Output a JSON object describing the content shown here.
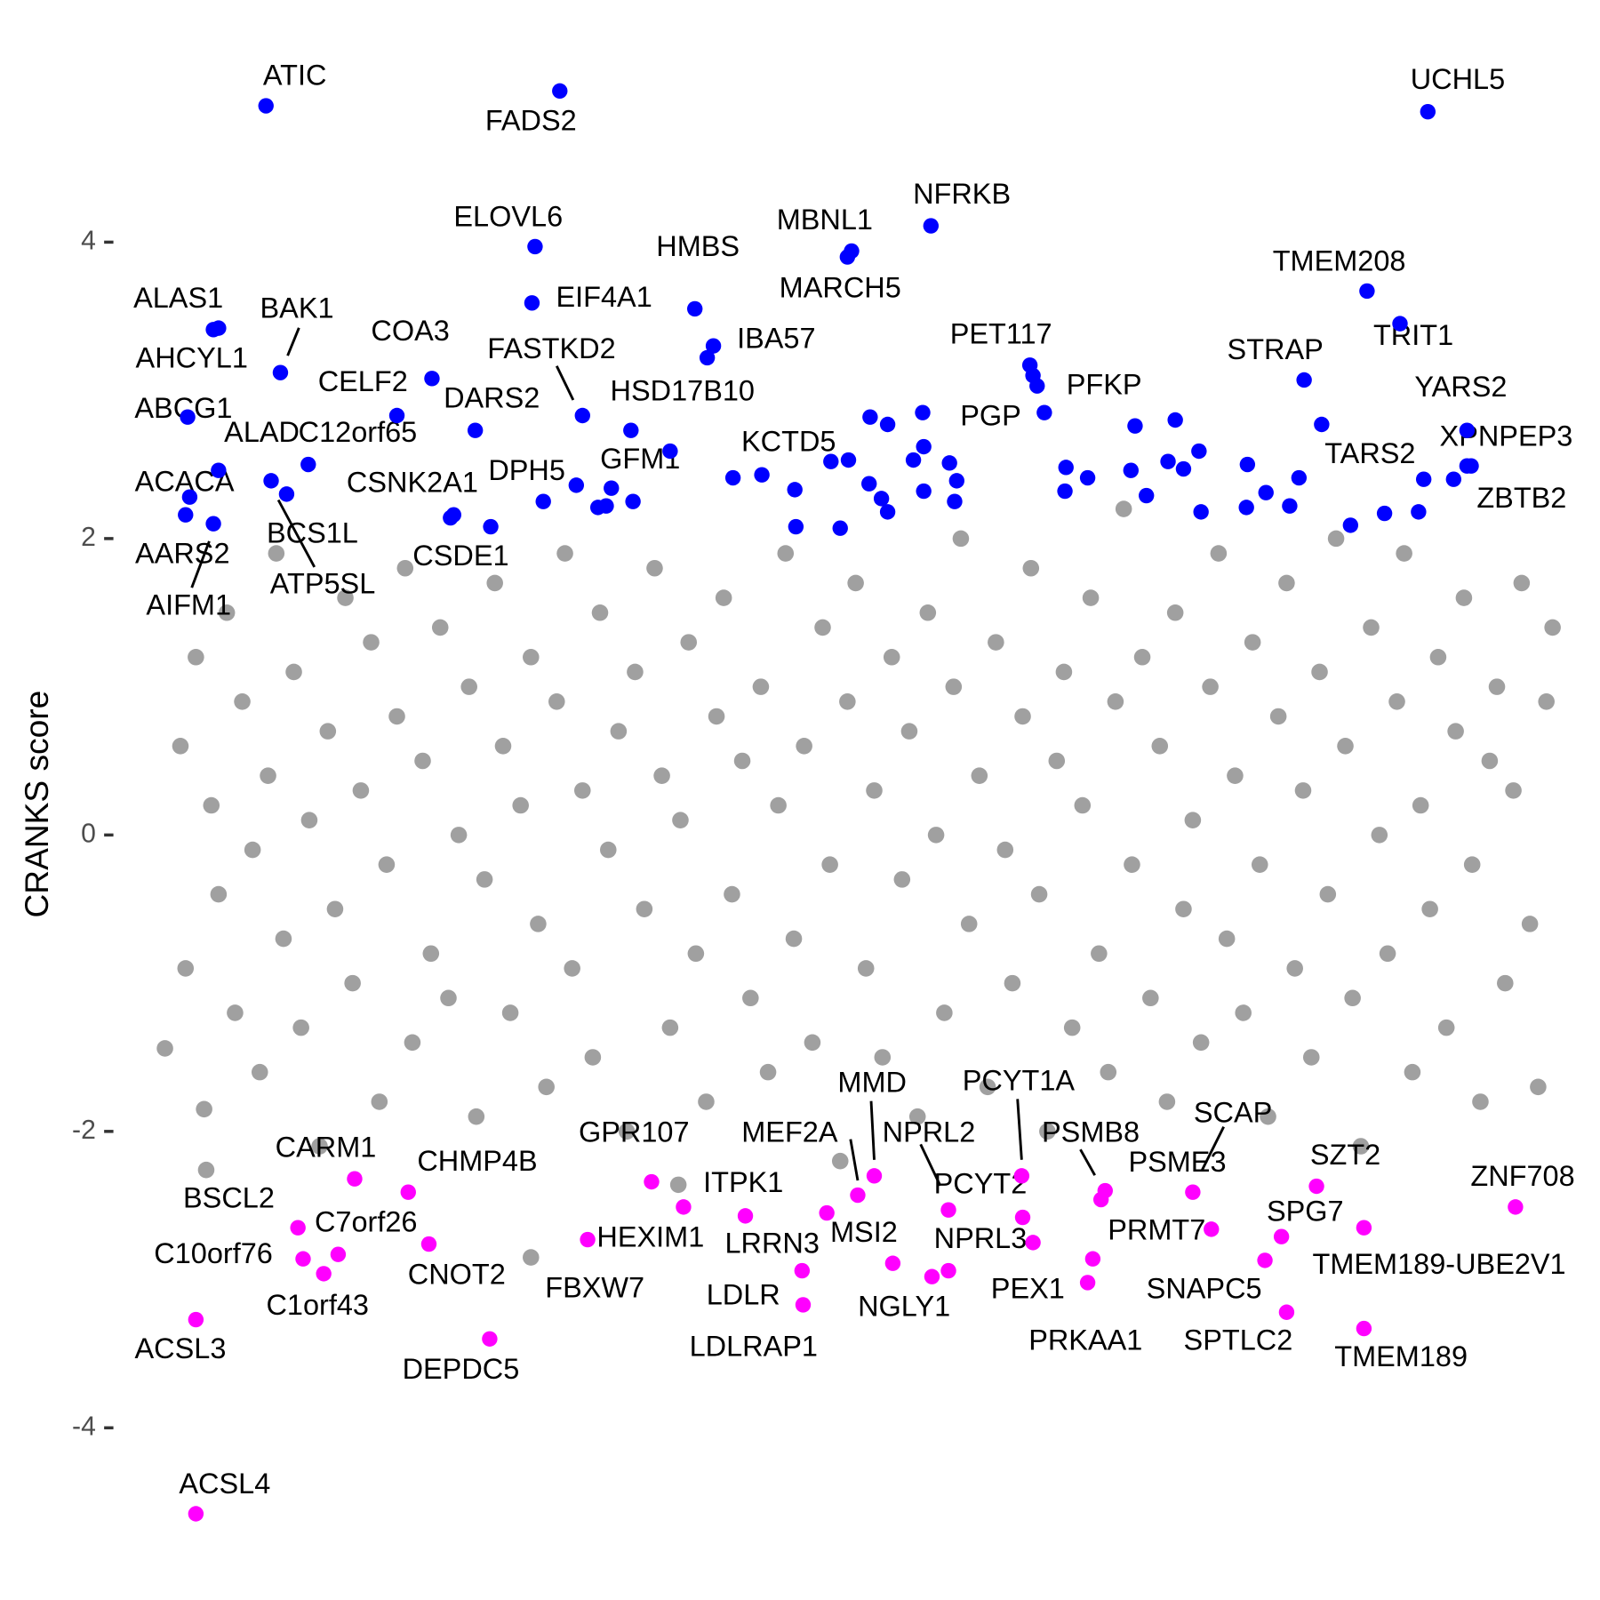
{
  "chart_data": {
    "type": "scatter",
    "y_label": "CRANKS score",
    "xlim": [
      0,
      1360
    ],
    "ylim": [
      -4.8,
      5.3
    ],
    "yticks": [
      -4,
      -2,
      0,
      2,
      4
    ],
    "series": [
      {
        "color": "#a0a0a0",
        "x": [
          10,
          25,
          30,
          40,
          48,
          55,
          62,
          70,
          78,
          85,
          95,
          102,
          110,
          118,
          125,
          135,
          142,
          150,
          160,
          168,
          175,
          185,
          192,
          200,
          210,
          218,
          225,
          235,
          243,
          250,
          260,
          268,
          277,
          285,
          295,
          305,
          312,
          320,
          330,
          338,
          345,
          355,
          365,
          372,
          380,
          390,
          398,
          405,
          415,
          425,
          432,
          440,
          450,
          458,
          466,
          475,
          485,
          492,
          500,
          510,
          518,
          525,
          535,
          545,
          552,
          560,
          570,
          578,
          588,
          595,
          605,
          612,
          620,
          630,
          638,
          648,
          655,
          665,
          672,
          680,
          690,
          698,
          706,
          715,
          725,
          732,
          740,
          750,
          758,
          766,
          775,
          782,
          790,
          800,
          808,
          816,
          825,
          832,
          842,
          850,
          858,
          866,
          875,
          882,
          890,
          900,
          908,
          916,
          925,
          932,
          940,
          948,
          958,
          966,
          975,
          982,
          990,
          998,
          1007,
          1015,
          1024,
          1032,
          1040,
          1048,
          1056,
          1065,
          1072,
          1080,
          1090,
          1098,
          1106,
          1114,
          1122,
          1130,
          1138,
          1146,
          1155,
          1162,
          1170,
          1180,
          1188,
          1196,
          1205,
          1212,
          1220,
          1228,
          1237,
          1245,
          1253,
          1262,
          1270,
          1278,
          1286,
          1295,
          1302,
          1310,
          1318,
          1326,
          1334,
          1342,
          1350,
          1356,
          50,
          365,
          508
        ],
        "y": [
          -1.44,
          0.6,
          -0.9,
          1.2,
          -1.85,
          0.2,
          -0.4,
          1.5,
          -1.2,
          0.9,
          -0.1,
          -1.6,
          0.4,
          1.9,
          -0.7,
          1.1,
          -1.3,
          0.1,
          -2.1,
          0.7,
          -0.5,
          1.6,
          -1.0,
          0.3,
          1.3,
          -1.8,
          -0.2,
          0.8,
          1.8,
          -1.4,
          0.5,
          -0.8,
          1.4,
          -1.1,
          0.0,
          1.0,
          -1.9,
          -0.3,
          1.7,
          0.6,
          -1.2,
          0.2,
          1.2,
          -0.6,
          -1.7,
          0.9,
          1.9,
          -0.9,
          0.3,
          -1.5,
          1.5,
          -0.1,
          0.7,
          -2.0,
          1.1,
          -0.5,
          1.8,
          0.4,
          -1.3,
          0.1,
          1.3,
          -0.8,
          -1.8,
          0.8,
          1.6,
          -0.4,
          0.5,
          -1.1,
          1.0,
          -1.6,
          0.2,
          1.9,
          -0.7,
          0.6,
          -1.4,
          1.4,
          -0.2,
          -2.2,
          0.9,
          1.7,
          -0.9,
          0.3,
          -1.5,
          1.2,
          -0.3,
          0.7,
          -1.9,
          1.5,
          0.0,
          -1.2,
          1.0,
          2.0,
          -0.6,
          0.4,
          -1.7,
          1.3,
          -0.1,
          -1.0,
          0.8,
          1.8,
          -0.4,
          -2.0,
          0.5,
          1.1,
          -1.3,
          0.2,
          1.6,
          -0.8,
          -1.6,
          0.9,
          2.2,
          -0.2,
          1.2,
          -1.1,
          0.6,
          -1.8,
          1.5,
          -0.5,
          0.1,
          -1.4,
          1.0,
          1.9,
          -0.7,
          0.4,
          -1.2,
          1.3,
          -0.2,
          -1.9,
          0.8,
          1.7,
          -0.9,
          0.3,
          -1.5,
          1.1,
          -0.4,
          2.0,
          0.6,
          -1.1,
          -2.1,
          1.4,
          0.0,
          -0.8,
          0.9,
          1.9,
          -1.6,
          0.2,
          -0.5,
          1.2,
          -1.3,
          0.7,
          1.6,
          -0.2,
          -1.8,
          0.5,
          1.0,
          -1.0,
          0.3,
          1.7,
          -0.6,
          -1.7,
          0.9,
          1.4,
          -2.26,
          -2.85,
          -2.36
        ]
      },
      {
        "color": "#0000ff",
        "labels": [
          "ATIC",
          "FADS2",
          "UCHL5",
          "NFRKB",
          "ELOVL6",
          "MBNL1",
          "MARCH5",
          "HMBS",
          "EIF4A1",
          "TMEM208",
          "TRIT1",
          "ALAS1",
          "AHCYL1",
          "BAK1",
          "COA3",
          "IBA57",
          "FASTKD2",
          "PET117",
          "STRAP",
          "YARS2",
          "PFKP",
          "HSD17B10",
          "CELF2",
          "PGP",
          "DARS2",
          "ABCG1",
          "ALAD",
          "C12orf65",
          "KCTD5",
          "TARS2",
          "XPNPEP3",
          "GFM1",
          "DPH5",
          "ACACA",
          "CSNK2A1",
          "ZBTB2",
          "BCS1L",
          "ATP5SL",
          "AARS2",
          "AIFM1",
          "CSDE1",
          null,
          null,
          null,
          null,
          null,
          null,
          null,
          null,
          null,
          null,
          null,
          null,
          null,
          null,
          null,
          null,
          null,
          null,
          null,
          null,
          null,
          null,
          null,
          null,
          null,
          null,
          null,
          null,
          null,
          null,
          null,
          null,
          null,
          null,
          null,
          null,
          null,
          null,
          null,
          null,
          null,
          null,
          null,
          null,
          null,
          null,
          null
        ],
        "x": [
          108,
          393,
          1235,
          753,
          369,
          676,
          672,
          524,
          366,
          1176,
          1208,
          57,
          62,
          122,
          269,
          542,
          415,
          849,
          1115,
          1273,
          863,
          462,
          235,
          856,
          311,
          32,
          113,
          149,
          589,
          1132,
          1277,
          500,
          377,
          34,
          290,
          1226,
          62,
          128,
          30,
          57,
          326,
          536,
          443,
          438,
          430,
          464,
          409,
          561,
          621,
          656,
          673,
          694,
          711,
          693,
          705,
          711,
          745,
          746,
          736,
          746,
          771,
          778,
          776,
          884,
          883,
          905,
          951,
          947,
          962,
          983,
          990,
          998,
          1013,
          1015,
          1060,
          1078,
          1101,
          1110,
          1160,
          1193,
          1231,
          1260,
          1273,
          665,
          622,
          287,
          852,
          1059
        ],
        "y": [
          4.92,
          5.02,
          4.88,
          4.11,
          3.97,
          3.94,
          3.9,
          3.55,
          3.59,
          3.67,
          3.45,
          3.41,
          3.42,
          3.12,
          3.08,
          3.3,
          2.83,
          3.17,
          3.07,
          2.73,
          2.85,
          2.73,
          2.83,
          3.03,
          2.73,
          2.82,
          2.39,
          2.5,
          2.43,
          2.77,
          2.49,
          2.59,
          2.25,
          2.28,
          2.16,
          2.18,
          2.46,
          2.3,
          2.16,
          2.1,
          2.08,
          3.22,
          2.34,
          2.22,
          2.21,
          2.25,
          2.36,
          2.41,
          2.33,
          2.52,
          2.53,
          2.82,
          2.77,
          2.37,
          2.27,
          2.18,
          2.85,
          2.62,
          2.53,
          2.32,
          2.51,
          2.39,
          2.25,
          2.48,
          2.32,
          2.41,
          2.76,
          2.46,
          2.29,
          2.52,
          2.8,
          2.47,
          2.59,
          2.18,
          2.5,
          2.31,
          2.22,
          2.41,
          2.09,
          2.17,
          2.4,
          2.4,
          2.49,
          2.07,
          2.08,
          2.14,
          3.1,
          2.21
        ]
      },
      {
        "color": "#ff00ff",
        "labels": [
          "ACSL4",
          "ACSL3",
          "BSCL2",
          "C10orf76",
          "C7orf26",
          "C1orf43",
          "CARM1",
          "CHMP4B",
          "CNOT2",
          "DEPDC5",
          "GPR107",
          "HEXIM1",
          "FBXW7",
          "ITPK1",
          "MEF2A",
          "MMD",
          "LRRN3",
          "LDLR",
          "LDLRAP1",
          "MSI2",
          "NGLY1",
          "NPRL2",
          "NPRL3",
          "PCYT1A",
          "PCYT2",
          "PEX1",
          "PRKAA1",
          "PSMB8",
          "PRMT7",
          "SCAP",
          "PSME3",
          "SNAPC5",
          "SPG7",
          "SPTLC2",
          "SZT2",
          "TMEM189-UBE2V1",
          "TMEM189",
          "ZNF708",
          null
        ],
        "x": [
          40,
          40,
          139,
          144,
          178,
          164,
          194,
          246,
          266,
          325,
          482,
          513,
          420,
          573,
          682,
          698,
          652,
          628,
          629,
          716,
          754,
          770,
          770,
          841,
          842,
          852,
          905,
          922,
          910,
          1007,
          1025,
          1077,
          1093,
          1098,
          1127,
          1173,
          1173,
          1320,
          918
        ],
        "y": [
          -4.58,
          -3.27,
          -2.65,
          -2.86,
          -2.83,
          -2.96,
          -2.32,
          -2.41,
          -2.76,
          -3.4,
          -2.34,
          -2.51,
          -2.73,
          -2.57,
          -2.43,
          -2.3,
          -2.55,
          -2.94,
          -3.17,
          -2.89,
          -2.98,
          -2.53,
          -2.94,
          -2.3,
          -2.58,
          -2.75,
          -3.02,
          -2.4,
          -2.86,
          -2.41,
          -2.66,
          -2.87,
          -2.71,
          -3.22,
          -2.37,
          -2.65,
          -3.33,
          -2.51,
          -2.46
        ]
      }
    ]
  }
}
